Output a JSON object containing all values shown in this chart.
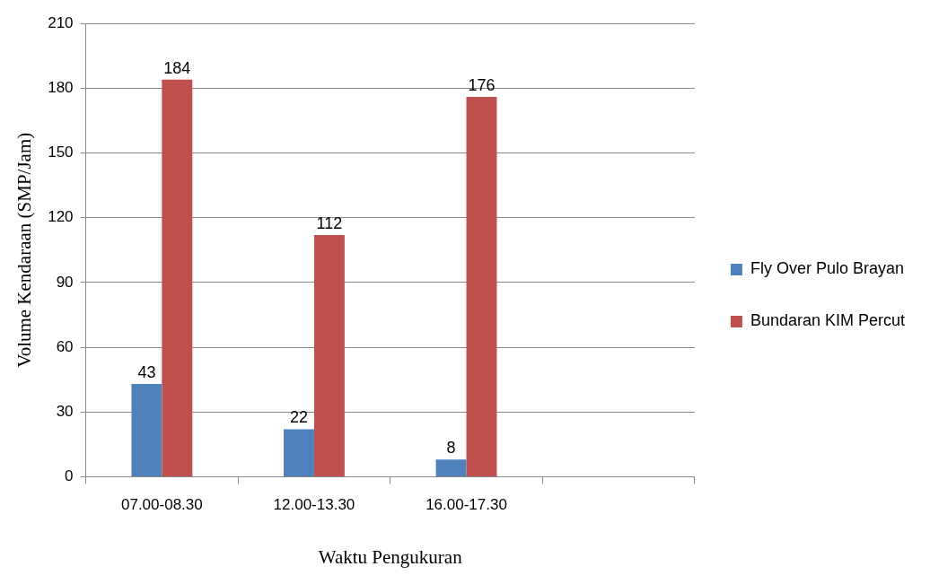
{
  "chart_data": {
    "type": "bar",
    "xlabel": "Waktu Pengukuran",
    "ylabel": "Volume Kendaraan (SMP/Jam)",
    "categories": [
      "07.00-08.30",
      "12.00-13.30",
      "16.00-17.30",
      null
    ],
    "series": [
      {
        "name": "Fly Over Pulo Brayan",
        "color": "#4f81bd",
        "values": [
          43,
          22,
          8,
          null
        ]
      },
      {
        "name": "Bundaran KIM Percut",
        "color": "#c0504d",
        "values": [
          184,
          112,
          176,
          null
        ]
      }
    ],
    "ylim": [
      0,
      210
    ],
    "yticks": [
      0,
      30,
      60,
      90,
      120,
      150,
      180,
      210
    ],
    "grid": "y",
    "legend": "right",
    "data_labels": true
  }
}
